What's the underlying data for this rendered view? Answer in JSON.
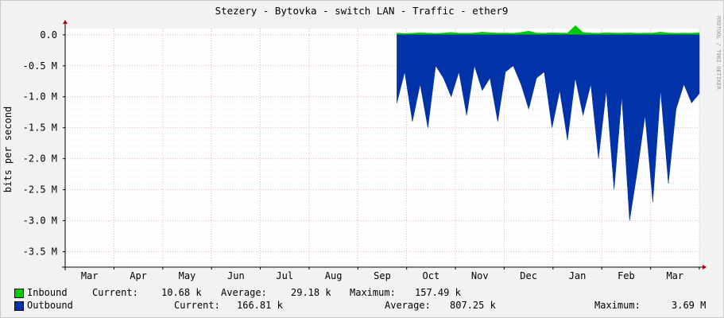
{
  "chart_data": {
    "type": "area",
    "title": "Stezery - Bytovka - switch LAN - Traffic - ether9",
    "ylabel": "bits per second",
    "watermark": "RRDTOOL / TOBI OETIKER",
    "x_ticks": [
      "Mar",
      "Apr",
      "May",
      "Jun",
      "Jul",
      "Aug",
      "Sep",
      "Oct",
      "Nov",
      "Dec",
      "Jan",
      "Feb",
      "Mar"
    ],
    "y_ticks": [
      "0.0",
      "-0.5 M",
      "-1.0 M",
      "-1.5 M",
      "-2.0 M",
      "-2.5 M",
      "-3.0 M",
      "-3.5 M"
    ],
    "y_values": [
      0,
      -500000,
      -1000000,
      -1500000,
      -2000000,
      -2500000,
      -3000000,
      -3500000
    ],
    "ylim": [
      -3750000,
      100000
    ],
    "data_start_month_index": 6.8,
    "series": [
      {
        "name": "Inbound",
        "color": "#00cc00",
        "values": [
          30000,
          20000,
          25000,
          35000,
          28000,
          22000,
          30000,
          40000,
          27000,
          25000,
          30000,
          45000,
          35000,
          28000,
          30000,
          25000,
          40000,
          60000,
          30000,
          25000,
          35000,
          30000,
          28000,
          150000,
          40000,
          30000,
          25000,
          35000,
          30000,
          28000,
          32000,
          25000,
          30000,
          28000,
          45000,
          30000,
          25000,
          30000,
          27000,
          35000
        ]
      },
      {
        "name": "Outbound",
        "color": "#0033aa",
        "values": [
          -1100000,
          -600000,
          -1400000,
          -800000,
          -1500000,
          -500000,
          -700000,
          -1000000,
          -600000,
          -1300000,
          -500000,
          -900000,
          -700000,
          -1400000,
          -600000,
          -500000,
          -800000,
          -1200000,
          -700000,
          -600000,
          -1500000,
          -900000,
          -1700000,
          -700000,
          -1300000,
          -800000,
          -2000000,
          -900000,
          -2500000,
          -1000000,
          -3000000,
          -2200000,
          -1300000,
          -2700000,
          -900000,
          -2400000,
          -1200000,
          -800000,
          -1100000,
          -950000
        ]
      }
    ]
  },
  "legend": {
    "inbound": {
      "name": "Inbound",
      "current_label": "Current:",
      "current": "10.68 k",
      "average_label": "Average:",
      "average": "29.18 k",
      "maximum_label": "Maximum:",
      "maximum": "157.49 k"
    },
    "outbound": {
      "name": "Outbound",
      "current_label": "Current:",
      "current": "166.81 k",
      "average_label": "Average:",
      "average": "807.25 k",
      "maximum_label": "Maximum:",
      "maximum": "3.69 M"
    }
  }
}
